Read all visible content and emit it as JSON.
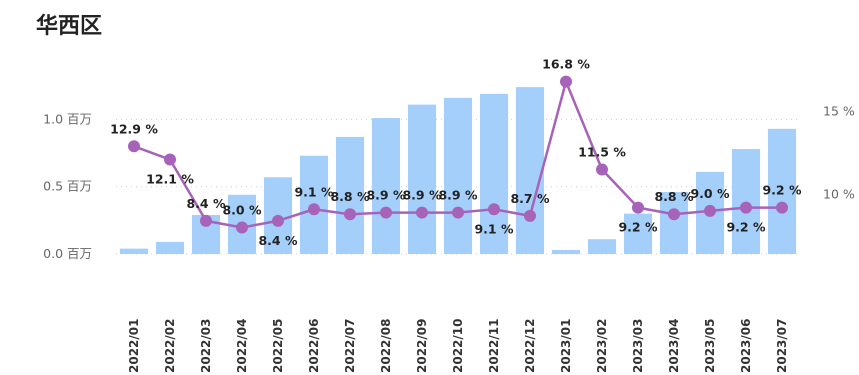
{
  "chart_data": {
    "type": "bar",
    "title": "华西区",
    "categories": [
      "2022/01",
      "2022/02",
      "2022/03",
      "2022/04",
      "2022/05",
      "2022/06",
      "2022/07",
      "2022/08",
      "2022/09",
      "2022/10",
      "2022/11",
      "2022/12",
      "2023/01",
      "2023/02",
      "2023/03",
      "2023/04",
      "2023/05",
      "2023/06",
      "2023/07"
    ],
    "series": [
      {
        "axis": "left",
        "color": "#a3cffa",
        "values": [
          0.04,
          0.09,
          0.29,
          0.44,
          0.57,
          0.73,
          0.87,
          1.01,
          1.11,
          1.16,
          1.19,
          1.24,
          0.03,
          0.11,
          0.3,
          0.46,
          0.61,
          0.78,
          0.93
        ]
      },
      {
        "axis": "right",
        "type": "line",
        "color": "#a763ba",
        "values": [
          12.9,
          12.1,
          8.4,
          8.0,
          8.4,
          9.1,
          8.8,
          8.9,
          8.9,
          8.9,
          9.1,
          8.7,
          16.8,
          11.5,
          9.2,
          8.8,
          9.0,
          9.2,
          9.2
        ],
        "labels": [
          "12.9 %",
          "12.1 %",
          "8.4 %",
          "8.0 %",
          "8.4 %",
          "9.1 %",
          "8.8 %",
          "8.9 %",
          "8.9 %",
          "8.9 %",
          "9.1 %",
          "8.7 %",
          "16.8 %",
          "11.5 %",
          "9.2 %",
          "8.8 %",
          "9.0 %",
          "9.2 %",
          "9.2 %"
        ]
      }
    ],
    "yaxis_left": {
      "ticks": [
        "0.0 百万",
        "0.5 百万",
        "1.0 百万"
      ],
      "tick_values": [
        0,
        0.5,
        1.0
      ],
      "ylim": [
        0,
        1.33
      ]
    },
    "yaxis_right": {
      "ticks": [
        "10 %",
        "15 %"
      ],
      "tick_values": [
        10,
        15
      ],
      "ylim": [
        6.4,
        17.2
      ]
    },
    "grid": true,
    "legend": "none"
  }
}
